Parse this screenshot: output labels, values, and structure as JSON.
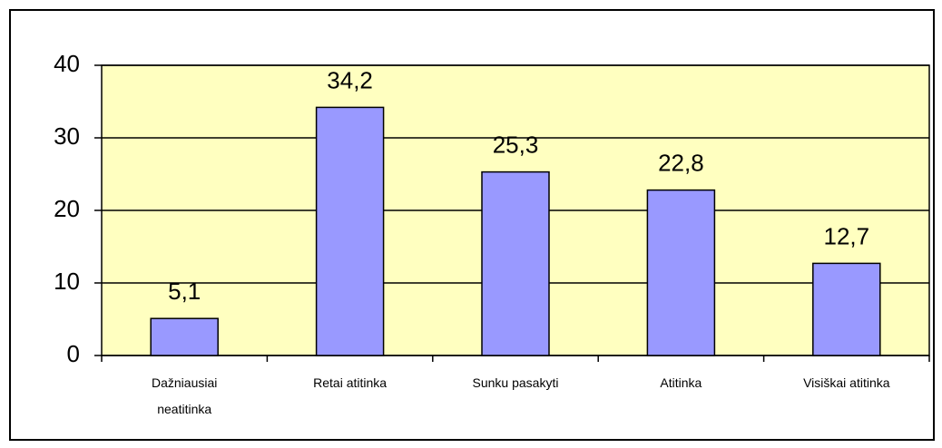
{
  "chart_data": {
    "type": "bar",
    "categories": [
      "Dažniausiai neatitinka",
      "Retai atitinka",
      "Sunku pasakyti",
      "Atitinka",
      "Visiškai atitinka"
    ],
    "values": [
      5.1,
      34.2,
      25.3,
      22.8,
      12.7
    ],
    "value_labels": [
      "5,1",
      "34,2",
      "25,3",
      "22,8",
      "12,7"
    ],
    "color": "#9999ff",
    "ylim": [
      0,
      40
    ],
    "yticks": [
      0,
      10,
      20,
      30,
      40
    ],
    "grid": true
  }
}
